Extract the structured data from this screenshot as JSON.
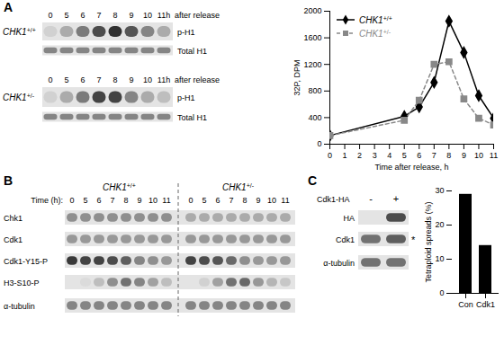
{
  "panel_labels": [
    "A",
    "B",
    "C"
  ],
  "chart_data": [
    {
      "type": "line",
      "x": [
        0,
        5,
        6,
        7,
        8,
        9,
        10,
        11
      ],
      "series": [
        {
          "name": "CHK1+/+",
          "color": "#000000",
          "marker": "diamond",
          "line_style": "solid",
          "values": [
            130,
            420,
            560,
            930,
            1850,
            1380,
            730,
            390
          ]
        },
        {
          "name": "CHK1+/-",
          "color": "#888888",
          "marker": "square",
          "line_style": "dashed",
          "values": [
            130,
            360,
            660,
            1200,
            1240,
            680,
            390,
            290
          ]
        }
      ],
      "xlabel": "Time after release, h",
      "ylabel": "32P, DPM",
      "xlim": [
        0,
        11
      ],
      "xticks": [
        0,
        1,
        2,
        3,
        4,
        5,
        6,
        7,
        8,
        9,
        10,
        11
      ],
      "ylim": [
        0,
        2000
      ],
      "yticks": [
        0,
        400,
        800,
        1200,
        1600,
        2000
      ],
      "legend": "top-left"
    },
    {
      "type": "bar",
      "categories": [
        "Con",
        "Cdk1"
      ],
      "values": [
        29,
        14
      ],
      "color": "#000000",
      "ylabel": "Tetraploid spreads (%)",
      "ylim": [
        0,
        30
      ],
      "yticks": [
        0,
        10,
        20,
        30
      ]
    }
  ],
  "blots": {
    "A": [
      {
        "genotype": "CHK1+/+",
        "times": [
          "0",
          "5",
          "6",
          "7",
          "8",
          "9",
          "10",
          "11h"
        ],
        "time_note": "after release",
        "rows": [
          {
            "label": "p-H1",
            "bands": [
              0.1,
              0.3,
              0.55,
              0.8,
              0.95,
              0.75,
              0.5,
              0.3
            ]
          },
          {
            "label": "Total H1",
            "bands": [
              0.5,
              0.5,
              0.5,
              0.5,
              0.5,
              0.5,
              0.5,
              0.5
            ]
          }
        ]
      },
      {
        "genotype": "CHK1+/-",
        "times": [
          "0",
          "5",
          "6",
          "7",
          "8",
          "9",
          "10",
          "11h"
        ],
        "time_note": "after release",
        "rows": [
          {
            "label": "p-H1",
            "bands": [
              0.1,
              0.3,
              0.55,
              0.85,
              0.85,
              0.5,
              0.3,
              0.2
            ]
          },
          {
            "label": "Total H1",
            "bands": [
              0.5,
              0.5,
              0.5,
              0.5,
              0.5,
              0.5,
              0.5,
              0.5
            ]
          }
        ]
      }
    ],
    "B": {
      "genotypes": [
        "CHK1+/+",
        "CHK1+/-"
      ],
      "time_label": "Time (h):",
      "times": [
        "0",
        "5",
        "6",
        "7",
        "8",
        "9",
        "10",
        "11"
      ],
      "rows": [
        {
          "label": "Chk1",
          "bands": [
            0.45,
            0.45,
            0.45,
            0.45,
            0.45,
            0.45,
            0.45,
            0.45,
            0.3,
            0.3,
            0.3,
            0.3,
            0.3,
            0.3,
            0.3,
            0.3
          ]
        },
        {
          "label": "Cdk1",
          "bands": [
            0.4,
            0.4,
            0.4,
            0.4,
            0.4,
            0.4,
            0.4,
            0.4,
            0.4,
            0.4,
            0.4,
            0.4,
            0.4,
            0.4,
            0.4,
            0.4
          ]
        },
        {
          "label": "Cdk1-Y15-P",
          "bands": [
            0.9,
            0.85,
            0.85,
            0.8,
            0.7,
            0.5,
            0.45,
            0.4,
            0.85,
            0.8,
            0.75,
            0.65,
            0.45,
            0.4,
            0.4,
            0.4
          ]
        },
        {
          "label": "H3-S10-P",
          "bands": [
            0,
            0.05,
            0.2,
            0.45,
            0.6,
            0.5,
            0.35,
            0.2,
            0,
            0.1,
            0.35,
            0.6,
            0.65,
            0.4,
            0.25,
            0.15
          ]
        },
        {
          "label": "α-tubulin",
          "bands": [
            0.5,
            0.5,
            0.5,
            0.5,
            0.5,
            0.5,
            0.5,
            0.5,
            0.5,
            0.5,
            0.5,
            0.5,
            0.5,
            0.5,
            0.5,
            0.5
          ]
        }
      ]
    },
    "C": {
      "treatment_label": "Cdk1-HA",
      "lanes": [
        "-",
        "+"
      ],
      "rows": [
        {
          "label": "HA",
          "bands": [
            0,
            0.8
          ]
        },
        {
          "label": "Cdk1",
          "bands": [
            0.6,
            0.7
          ],
          "annotation": "*"
        },
        {
          "label": "α-tubulin",
          "bands": [
            0.6,
            0.6
          ]
        }
      ]
    }
  }
}
